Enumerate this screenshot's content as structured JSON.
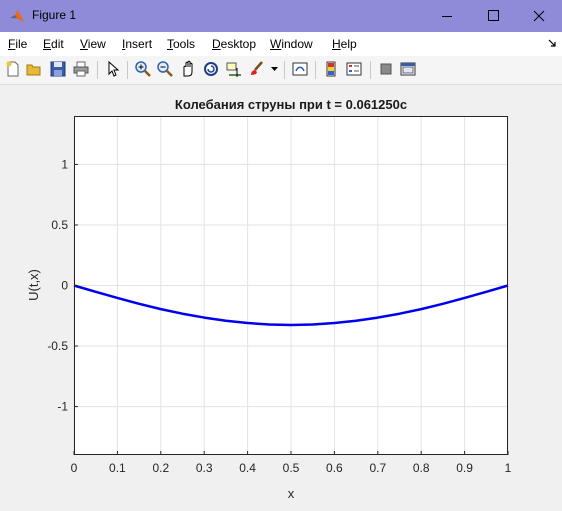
{
  "window": {
    "title": "Figure 1",
    "titlebar_color": "#8f8bd8"
  },
  "menu": {
    "items": [
      {
        "label": "File",
        "key": "F",
        "rest": "ile"
      },
      {
        "label": "Edit",
        "key": "E",
        "rest": "dit"
      },
      {
        "label": "View",
        "key": "V",
        "rest": "iew"
      },
      {
        "label": "Insert",
        "key": "I",
        "rest": "nsert"
      },
      {
        "label": "Tools",
        "key": "T",
        "rest": "ools"
      },
      {
        "label": "Desktop",
        "key": "D",
        "rest": "esktop"
      },
      {
        "label": "Window",
        "key": "W",
        "rest": "indow"
      },
      {
        "label": "Help",
        "key": "H",
        "rest": "elp"
      }
    ]
  },
  "toolbar": {
    "icons": [
      "new-figure-icon",
      "open-file-icon",
      "save-icon",
      "print-icon",
      "pointer-icon",
      "zoom-in-icon",
      "zoom-out-icon",
      "pan-hand-icon",
      "rotate-3d-icon",
      "data-cursor-icon",
      "brush-icon",
      "link-plot-icon",
      "colorbar-icon",
      "legend-icon",
      "hide-plot-tools-icon",
      "show-plot-tools-icon"
    ]
  },
  "chart_data": {
    "type": "line",
    "title": "Колебания струны при t = 0.061250c",
    "xlabel": "x",
    "ylabel": "U(t,x)",
    "xlim": [
      0,
      1
    ],
    "ylim": [
      -1.4,
      1.4
    ],
    "xticks": [
      "0",
      "0.1",
      "0.2",
      "0.3",
      "0.4",
      "0.5",
      "0.6",
      "0.7",
      "0.8",
      "0.9",
      "1"
    ],
    "yticks": [
      "1",
      "0.5",
      "0",
      "-0.5",
      "-1"
    ],
    "grid": true,
    "line_color": "#0000ee",
    "x": [
      0,
      0.05,
      0.1,
      0.15,
      0.2,
      0.25,
      0.3,
      0.35,
      0.4,
      0.45,
      0.5,
      0.55,
      0.6,
      0.65,
      0.7,
      0.75,
      0.8,
      0.85,
      0.9,
      0.95,
      1
    ],
    "y": [
      0,
      -0.052,
      -0.103,
      -0.151,
      -0.195,
      -0.233,
      -0.265,
      -0.291,
      -0.31,
      -0.322,
      -0.326,
      -0.322,
      -0.31,
      -0.291,
      -0.265,
      -0.233,
      -0.195,
      -0.151,
      -0.103,
      -0.052,
      0
    ]
  }
}
